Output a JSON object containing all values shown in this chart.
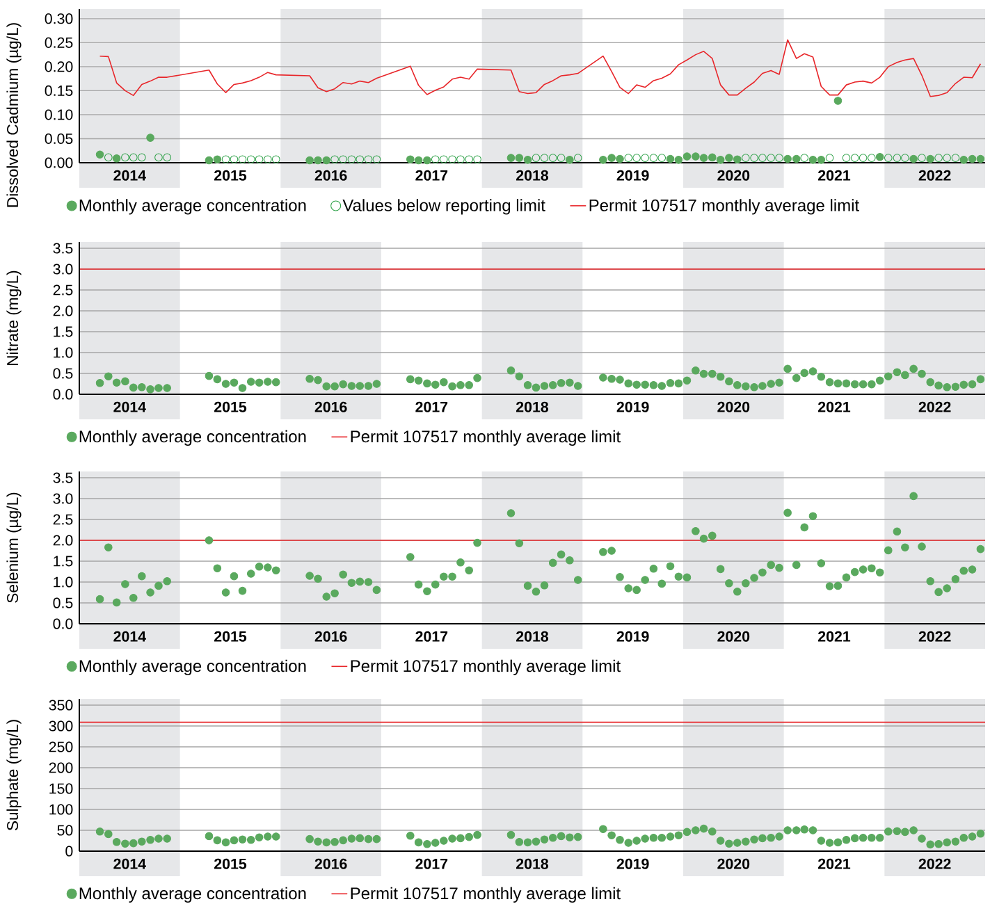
{
  "chart_data": [
    {
      "type": "scatter",
      "ylabel": "Dissolved Cadmium (µg/L)",
      "xlim": [
        "2014-01-01",
        "2023-01-01"
      ],
      "ylim": [
        0,
        0.32
      ],
      "x": [
        "2014-03-15",
        "2014-04-15",
        "2014-05-15",
        "2014-06-15",
        "2014-07-15",
        "2014-08-15",
        "2014-09-15",
        "2014-10-15",
        "2014-11-15",
        "2015-04-15",
        "2015-05-15",
        "2015-06-15",
        "2015-07-15",
        "2015-08-15",
        "2015-09-15",
        "2015-10-15",
        "2015-11-15",
        "2015-12-15",
        "2016-04-15",
        "2016-05-15",
        "2016-06-15",
        "2016-07-15",
        "2016-08-15",
        "2016-09-15",
        "2016-10-15",
        "2016-11-15",
        "2016-12-15",
        "2017-04-15",
        "2017-05-15",
        "2017-06-15",
        "2017-07-15",
        "2017-08-15",
        "2017-09-15",
        "2017-10-15",
        "2017-11-15",
        "2017-12-15",
        "2018-04-15",
        "2018-05-15",
        "2018-06-15",
        "2018-07-15",
        "2018-08-15",
        "2018-09-15",
        "2018-10-15",
        "2018-11-15",
        "2018-12-15",
        "2019-03-15",
        "2019-04-15",
        "2019-05-15",
        "2019-06-15",
        "2019-07-15",
        "2019-08-15",
        "2019-09-15",
        "2019-10-15",
        "2019-11-15",
        "2019-12-15",
        "2020-01-15",
        "2020-02-15",
        "2020-03-15",
        "2020-04-15",
        "2020-05-15",
        "2020-06-15",
        "2020-07-15",
        "2020-08-15",
        "2020-09-15",
        "2020-10-15",
        "2020-11-15",
        "2020-12-15",
        "2021-01-15",
        "2021-02-15",
        "2021-03-15",
        "2021-04-15",
        "2021-05-15",
        "2021-06-15",
        "2021-07-15",
        "2021-08-15",
        "2021-09-15",
        "2021-10-15",
        "2021-11-15",
        "2021-12-15",
        "2022-01-15",
        "2022-02-15",
        "2022-03-15",
        "2022-04-15",
        "2022-05-15",
        "2022-06-15",
        "2022-07-15",
        "2022-08-15",
        "2022-09-15",
        "2022-10-15",
        "2022-11-15",
        "2022-12-15"
      ],
      "xticks": [
        {
          "value": "2014-07-01",
          "label": "2014"
        },
        {
          "value": "2015-07-01",
          "label": "2015"
        },
        {
          "value": "2016-07-01",
          "label": "2016"
        },
        {
          "value": "2017-07-01",
          "label": "2017"
        },
        {
          "value": "2018-07-01",
          "label": "2018"
        },
        {
          "value": "2019-07-01",
          "label": "2019"
        },
        {
          "value": "2020-07-01",
          "label": "2020"
        },
        {
          "value": "2021-07-01",
          "label": "2021"
        },
        {
          "value": "2022-07-01",
          "label": "2022"
        }
      ],
      "yticks": [
        {
          "value": 0,
          "label": "0.00"
        },
        {
          "value": 0.05,
          "label": "0.05"
        },
        {
          "value": 0.1,
          "label": "0.10"
        },
        {
          "value": 0.15,
          "label": "0.15"
        },
        {
          "value": 0.2,
          "label": "0.20"
        },
        {
          "value": 0.25,
          "label": "0.25"
        },
        {
          "value": 0.3,
          "label": "0.30"
        }
      ],
      "grid": "y",
      "legend": "bottom",
      "bands": [
        {
          "axis": "x",
          "from": "2014-01-01",
          "to": "2015-01-01",
          "color": "#e6e7e9"
        },
        {
          "axis": "x",
          "from": "2016-01-01",
          "to": "2017-01-01",
          "color": "#e6e7e9"
        },
        {
          "axis": "x",
          "from": "2018-01-01",
          "to": "2019-01-01",
          "color": "#e6e7e9"
        },
        {
          "axis": "x",
          "from": "2020-01-01",
          "to": "2021-01-01",
          "color": "#e6e7e9"
        },
        {
          "axis": "x",
          "from": "2022-01-01",
          "to": "2023-01-01",
          "color": "#e6e7e9"
        }
      ],
      "series": [
        {
          "name": "Monthly average concentration",
          "color": "#5aa95e",
          "marker": "circle",
          "x": [
            "2014-03-15",
            "2014-05-15",
            "2014-09-15",
            "2015-04-15",
            "2015-05-15",
            "2016-04-15",
            "2016-05-15",
            "2016-06-15",
            "2017-04-15",
            "2017-05-15",
            "2017-06-15",
            "2018-04-15",
            "2018-05-15",
            "2018-06-15",
            "2018-11-15",
            "2019-03-15",
            "2019-04-15",
            "2019-05-15",
            "2019-11-15",
            "2019-12-15",
            "2020-01-15",
            "2020-02-15",
            "2020-03-15",
            "2020-04-15",
            "2020-05-15",
            "2020-06-15",
            "2020-07-15",
            "2021-01-15",
            "2021-02-15",
            "2021-04-15",
            "2021-05-15",
            "2021-07-15",
            "2021-12-15",
            "2022-04-15",
            "2022-06-15",
            "2022-10-15",
            "2022-11-15",
            "2022-12-15"
          ],
          "values": [
            0.017,
            0.009,
            0.052,
            0.005,
            0.007,
            0.005,
            0.005,
            0.005,
            0.007,
            0.005,
            0.005,
            0.01,
            0.01,
            0.006,
            0.006,
            0.006,
            0.01,
            0.008,
            0.008,
            0.006,
            0.013,
            0.013,
            0.01,
            0.011,
            0.006,
            0.01,
            0.007,
            0.008,
            0.008,
            0.006,
            0.006,
            0.129,
            0.012,
            0.008,
            0.008,
            0.006,
            0.008,
            0.008
          ]
        },
        {
          "name": "Values below reporting limit",
          "color": "#2ca046",
          "marker": "circle",
          "x": [
            "2014-04-15",
            "2014-06-15",
            "2014-07-15",
            "2014-08-15",
            "2014-10-15",
            "2014-11-15",
            "2015-06-15",
            "2015-07-15",
            "2015-08-15",
            "2015-09-15",
            "2015-10-15",
            "2015-11-15",
            "2015-12-15",
            "2016-07-15",
            "2016-08-15",
            "2016-09-15",
            "2016-10-15",
            "2016-11-15",
            "2016-12-15",
            "2017-07-15",
            "2017-08-15",
            "2017-09-15",
            "2017-10-15",
            "2017-11-15",
            "2017-12-15",
            "2018-07-15",
            "2018-08-15",
            "2018-09-15",
            "2018-10-15",
            "2018-12-15",
            "2019-06-15",
            "2019-07-15",
            "2019-08-15",
            "2019-09-15",
            "2019-10-15",
            "2020-08-15",
            "2020-09-15",
            "2020-10-15",
            "2020-11-15",
            "2020-12-15",
            "2021-03-15",
            "2021-06-15",
            "2021-08-15",
            "2021-09-15",
            "2021-10-15",
            "2021-11-15",
            "2022-01-15",
            "2022-02-15",
            "2022-03-15",
            "2022-05-15",
            "2022-07-15",
            "2022-08-15",
            "2022-09-15"
          ],
          "values": [
            0.011,
            0.011,
            0.011,
            0.011,
            0.011,
            0.011,
            0.007,
            0.007,
            0.007,
            0.007,
            0.007,
            0.007,
            0.007,
            0.007,
            0.007,
            0.007,
            0.007,
            0.007,
            0.007,
            0.007,
            0.007,
            0.007,
            0.007,
            0.007,
            0.007,
            0.01,
            0.01,
            0.01,
            0.01,
            0.01,
            0.01,
            0.01,
            0.01,
            0.01,
            0.01,
            0.01,
            0.01,
            0.01,
            0.01,
            0.01,
            0.01,
            0.01,
            0.01,
            0.01,
            0.01,
            0.01,
            0.01,
            0.01,
            0.01,
            0.01,
            0.01,
            0.01,
            0.01
          ]
        },
        {
          "type": "line",
          "name": "Permit 107517 monthly average limit",
          "color": "#e8262a",
          "values": [
            0.222,
            0.221,
            0.166,
            0.15,
            0.14,
            0.163,
            0.17,
            0.178,
            0.178,
            0.193,
            0.164,
            0.146,
            0.163,
            0.166,
            0.171,
            0.178,
            0.188,
            0.183,
            0.181,
            0.156,
            0.148,
            0.154,
            0.167,
            0.164,
            0.17,
            0.167,
            0.176,
            0.201,
            0.161,
            0.142,
            0.151,
            0.158,
            0.174,
            0.178,
            0.174,
            0.195,
            0.193,
            0.148,
            0.144,
            0.146,
            0.163,
            0.171,
            0.181,
            0.183,
            0.186,
            0.222,
            0.19,
            0.157,
            0.144,
            0.162,
            0.157,
            0.171,
            0.176,
            0.185,
            0.204,
            0.214,
            0.225,
            0.232,
            0.217,
            0.162,
            0.141,
            0.141,
            0.155,
            0.168,
            0.186,
            0.192,
            0.184,
            0.256,
            0.217,
            0.227,
            0.22,
            0.159,
            0.141,
            0.141,
            0.162,
            0.168,
            0.17,
            0.166,
            0.178,
            0.2,
            0.209,
            0.214,
            0.217,
            0.182,
            0.138,
            0.14,
            0.146,
            0.165,
            0.178,
            0.177,
            0.206
          ]
        }
      ]
    },
    {
      "type": "scatter",
      "ylabel": "Nitrate (mg/L)",
      "xlim": [
        "2014-01-01",
        "2023-01-01"
      ],
      "ylim": [
        0,
        3.65
      ],
      "x": [
        "2014-03-15",
        "2014-04-15",
        "2014-05-15",
        "2014-06-15",
        "2014-07-15",
        "2014-08-15",
        "2014-09-15",
        "2014-10-15",
        "2014-11-15",
        "2015-04-15",
        "2015-05-15",
        "2015-06-15",
        "2015-07-15",
        "2015-08-15",
        "2015-09-15",
        "2015-10-15",
        "2015-11-15",
        "2015-12-15",
        "2016-04-15",
        "2016-05-15",
        "2016-06-15",
        "2016-07-15",
        "2016-08-15",
        "2016-09-15",
        "2016-10-15",
        "2016-11-15",
        "2016-12-15",
        "2017-04-15",
        "2017-05-15",
        "2017-06-15",
        "2017-07-15",
        "2017-08-15",
        "2017-09-15",
        "2017-10-15",
        "2017-11-15",
        "2017-12-15",
        "2018-04-15",
        "2018-05-15",
        "2018-06-15",
        "2018-07-15",
        "2018-08-15",
        "2018-09-15",
        "2018-10-15",
        "2018-11-15",
        "2018-12-15",
        "2019-03-15",
        "2019-04-15",
        "2019-05-15",
        "2019-06-15",
        "2019-07-15",
        "2019-08-15",
        "2019-09-15",
        "2019-10-15",
        "2019-11-15",
        "2019-12-15",
        "2020-01-15",
        "2020-02-15",
        "2020-03-15",
        "2020-04-15",
        "2020-05-15",
        "2020-06-15",
        "2020-07-15",
        "2020-08-15",
        "2020-09-15",
        "2020-10-15",
        "2020-11-15",
        "2020-12-15",
        "2021-01-15",
        "2021-02-15",
        "2021-03-15",
        "2021-04-15",
        "2021-05-15",
        "2021-06-15",
        "2021-07-15",
        "2021-08-15",
        "2021-09-15",
        "2021-10-15",
        "2021-11-15",
        "2021-12-15",
        "2022-01-15",
        "2022-02-15",
        "2022-03-15",
        "2022-04-15",
        "2022-05-15",
        "2022-06-15",
        "2022-07-15",
        "2022-08-15",
        "2022-09-15",
        "2022-10-15",
        "2022-11-15",
        "2022-12-15"
      ],
      "xticks": [
        {
          "value": "2014-07-01",
          "label": "2014"
        },
        {
          "value": "2015-07-01",
          "label": "2015"
        },
        {
          "value": "2016-07-01",
          "label": "2016"
        },
        {
          "value": "2017-07-01",
          "label": "2017"
        },
        {
          "value": "2018-07-01",
          "label": "2018"
        },
        {
          "value": "2019-07-01",
          "label": "2019"
        },
        {
          "value": "2020-07-01",
          "label": "2020"
        },
        {
          "value": "2021-07-01",
          "label": "2021"
        },
        {
          "value": "2022-07-01",
          "label": "2022"
        }
      ],
      "yticks": [
        {
          "value": 0,
          "label": "0.0"
        },
        0.5,
        {
          "value": 1,
          "label": "1.0"
        },
        1.5,
        {
          "value": 2,
          "label": "2.0"
        },
        2.5,
        {
          "value": 3,
          "label": "3.0"
        },
        3.5
      ],
      "grid": "y",
      "legend": "bottom",
      "marker": "circle",
      "bands": [
        {
          "axis": "x",
          "from": "2014-01-01",
          "to": "2015-01-01",
          "color": "#e6e7e9"
        },
        {
          "axis": "x",
          "from": "2016-01-01",
          "to": "2017-01-01",
          "color": "#e6e7e9"
        },
        {
          "axis": "x",
          "from": "2018-01-01",
          "to": "2019-01-01",
          "color": "#e6e7e9"
        },
        {
          "axis": "x",
          "from": "2020-01-01",
          "to": "2021-01-01",
          "color": "#e6e7e9"
        },
        {
          "axis": "x",
          "from": "2022-01-01",
          "to": "2023-01-01",
          "color": "#e6e7e9"
        }
      ],
      "ref_lines": [
        {
          "axis": "y",
          "value": 3.0,
          "label": "Permit 107517 monthly average limit",
          "color": "#e8262a"
        }
      ],
      "series": [
        {
          "name": "Monthly average concentration",
          "color": "#5aa95e",
          "values": [
            0.27,
            0.43,
            0.28,
            0.31,
            0.16,
            0.17,
            0.12,
            0.15,
            0.15,
            0.44,
            0.36,
            0.25,
            0.28,
            0.15,
            0.3,
            0.28,
            0.3,
            0.29,
            0.37,
            0.34,
            0.19,
            0.19,
            0.24,
            0.2,
            0.2,
            0.2,
            0.25,
            0.36,
            0.33,
            0.26,
            0.23,
            0.29,
            0.19,
            0.22,
            0.22,
            0.39,
            0.57,
            0.43,
            0.22,
            0.16,
            0.2,
            0.22,
            0.27,
            0.28,
            0.2,
            0.4,
            0.37,
            0.35,
            0.26,
            0.23,
            0.23,
            0.22,
            0.2,
            0.27,
            0.26,
            0.33,
            0.57,
            0.49,
            0.49,
            0.42,
            0.31,
            0.22,
            0.19,
            0.17,
            0.2,
            0.25,
            0.28,
            0.61,
            0.39,
            0.51,
            0.55,
            0.42,
            0.29,
            0.26,
            0.26,
            0.24,
            0.24,
            0.24,
            0.33,
            0.43,
            0.53,
            0.46,
            0.61,
            0.49,
            0.29,
            0.21,
            0.17,
            0.18,
            0.23,
            0.24,
            0.36
          ]
        }
      ]
    },
    {
      "type": "scatter",
      "ylabel": "Selenium (µg/L)",
      "xlim": [
        "2014-01-01",
        "2023-01-01"
      ],
      "ylim": [
        0,
        3.65
      ],
      "x": [
        "2014-03-15",
        "2014-04-15",
        "2014-05-15",
        "2014-06-15",
        "2014-07-15",
        "2014-08-15",
        "2014-09-15",
        "2014-10-15",
        "2014-11-15",
        "2015-04-15",
        "2015-05-15",
        "2015-06-15",
        "2015-07-15",
        "2015-08-15",
        "2015-09-15",
        "2015-10-15",
        "2015-11-15",
        "2015-12-15",
        "2016-04-15",
        "2016-05-15",
        "2016-06-15",
        "2016-07-15",
        "2016-08-15",
        "2016-09-15",
        "2016-10-15",
        "2016-11-15",
        "2016-12-15",
        "2017-04-15",
        "2017-05-15",
        "2017-06-15",
        "2017-07-15",
        "2017-08-15",
        "2017-09-15",
        "2017-10-15",
        "2017-11-15",
        "2017-12-15",
        "2018-04-15",
        "2018-05-15",
        "2018-06-15",
        "2018-07-15",
        "2018-08-15",
        "2018-09-15",
        "2018-10-15",
        "2018-11-15",
        "2018-12-15",
        "2019-03-15",
        "2019-04-15",
        "2019-05-15",
        "2019-06-15",
        "2019-07-15",
        "2019-08-15",
        "2019-09-15",
        "2019-10-15",
        "2019-11-15",
        "2019-12-15",
        "2020-01-15",
        "2020-02-15",
        "2020-03-15",
        "2020-04-15",
        "2020-05-15",
        "2020-06-15",
        "2020-07-15",
        "2020-08-15",
        "2020-09-15",
        "2020-10-15",
        "2020-11-15",
        "2020-12-15",
        "2021-01-15",
        "2021-02-15",
        "2021-03-15",
        "2021-04-15",
        "2021-05-15",
        "2021-06-15",
        "2021-07-15",
        "2021-08-15",
        "2021-09-15",
        "2021-10-15",
        "2021-11-15",
        "2021-12-15",
        "2022-01-15",
        "2022-02-15",
        "2022-03-15",
        "2022-04-15",
        "2022-05-15",
        "2022-06-15",
        "2022-07-15",
        "2022-08-15",
        "2022-09-15",
        "2022-10-15",
        "2022-11-15",
        "2022-12-15"
      ],
      "xticks": [
        {
          "value": "2014-07-01",
          "label": "2014"
        },
        {
          "value": "2015-07-01",
          "label": "2015"
        },
        {
          "value": "2016-07-01",
          "label": "2016"
        },
        {
          "value": "2017-07-01",
          "label": "2017"
        },
        {
          "value": "2018-07-01",
          "label": "2018"
        },
        {
          "value": "2019-07-01",
          "label": "2019"
        },
        {
          "value": "2020-07-01",
          "label": "2020"
        },
        {
          "value": "2021-07-01",
          "label": "2021"
        },
        {
          "value": "2022-07-01",
          "label": "2022"
        }
      ],
      "yticks": [
        {
          "value": 0,
          "label": "0.0"
        },
        0.5,
        {
          "value": 1,
          "label": "1.0"
        },
        1.5,
        {
          "value": 2,
          "label": "2.0"
        },
        2.5,
        {
          "value": 3,
          "label": "3.0"
        },
        3.5
      ],
      "grid": "y",
      "legend": "bottom",
      "marker": "circle",
      "bands": [
        {
          "axis": "x",
          "from": "2014-01-01",
          "to": "2015-01-01",
          "color": "#e6e7e9"
        },
        {
          "axis": "x",
          "from": "2016-01-01",
          "to": "2017-01-01",
          "color": "#e6e7e9"
        },
        {
          "axis": "x",
          "from": "2018-01-01",
          "to": "2019-01-01",
          "color": "#e6e7e9"
        },
        {
          "axis": "x",
          "from": "2020-01-01",
          "to": "2021-01-01",
          "color": "#e6e7e9"
        },
        {
          "axis": "x",
          "from": "2022-01-01",
          "to": "2023-01-01",
          "color": "#e6e7e9"
        }
      ],
      "ref_lines": [
        {
          "axis": "y",
          "value": 2.0,
          "label": "Permit 107517 monthly average limit",
          "color": "#e8262a"
        }
      ],
      "series": [
        {
          "name": "Monthly average concentration",
          "color": "#5aa95e",
          "values": [
            0.59,
            1.83,
            0.51,
            0.95,
            0.62,
            1.14,
            0.75,
            0.91,
            1.02,
            2.0,
            1.33,
            0.75,
            1.14,
            0.79,
            1.2,
            1.37,
            1.35,
            1.28,
            1.15,
            1.08,
            0.65,
            0.73,
            1.18,
            0.98,
            1.01,
            1.0,
            0.81,
            1.6,
            0.94,
            0.78,
            0.94,
            1.13,
            1.13,
            1.47,
            1.28,
            1.94,
            2.65,
            1.93,
            0.91,
            0.77,
            0.92,
            1.46,
            1.66,
            1.52,
            1.05,
            1.72,
            1.75,
            1.12,
            0.85,
            0.81,
            1.05,
            1.32,
            0.96,
            1.38,
            1.13,
            1.11,
            2.22,
            2.04,
            2.11,
            1.31,
            0.97,
            0.77,
            0.97,
            1.1,
            1.23,
            1.41,
            1.34,
            2.66,
            1.41,
            2.31,
            2.58,
            1.45,
            0.9,
            0.91,
            1.11,
            1.24,
            1.3,
            1.33,
            1.23,
            1.76,
            2.21,
            1.83,
            3.06,
            1.85,
            1.02,
            0.76,
            0.85,
            1.07,
            1.27,
            1.3,
            1.79
          ]
        }
      ]
    },
    {
      "type": "scatter",
      "ylabel": "Sulphate (mg/L)",
      "xlim": [
        "2014-01-01",
        "2023-01-01"
      ],
      "ylim": [
        0,
        365
      ],
      "x": [
        "2014-03-15",
        "2014-04-15",
        "2014-05-15",
        "2014-06-15",
        "2014-07-15",
        "2014-08-15",
        "2014-09-15",
        "2014-10-15",
        "2014-11-15",
        "2015-04-15",
        "2015-05-15",
        "2015-06-15",
        "2015-07-15",
        "2015-08-15",
        "2015-09-15",
        "2015-10-15",
        "2015-11-15",
        "2015-12-15",
        "2016-04-15",
        "2016-05-15",
        "2016-06-15",
        "2016-07-15",
        "2016-08-15",
        "2016-09-15",
        "2016-10-15",
        "2016-11-15",
        "2016-12-15",
        "2017-04-15",
        "2017-05-15",
        "2017-06-15",
        "2017-07-15",
        "2017-08-15",
        "2017-09-15",
        "2017-10-15",
        "2017-11-15",
        "2017-12-15",
        "2018-04-15",
        "2018-05-15",
        "2018-06-15",
        "2018-07-15",
        "2018-08-15",
        "2018-09-15",
        "2018-10-15",
        "2018-11-15",
        "2018-12-15",
        "2019-03-15",
        "2019-04-15",
        "2019-05-15",
        "2019-06-15",
        "2019-07-15",
        "2019-08-15",
        "2019-09-15",
        "2019-10-15",
        "2019-11-15",
        "2019-12-15",
        "2020-01-15",
        "2020-02-15",
        "2020-03-15",
        "2020-04-15",
        "2020-05-15",
        "2020-06-15",
        "2020-07-15",
        "2020-08-15",
        "2020-09-15",
        "2020-10-15",
        "2020-11-15",
        "2020-12-15",
        "2021-01-15",
        "2021-02-15",
        "2021-03-15",
        "2021-04-15",
        "2021-05-15",
        "2021-06-15",
        "2021-07-15",
        "2021-08-15",
        "2021-09-15",
        "2021-10-15",
        "2021-11-15",
        "2021-12-15",
        "2022-01-15",
        "2022-02-15",
        "2022-03-15",
        "2022-04-15",
        "2022-05-15",
        "2022-06-15",
        "2022-07-15",
        "2022-08-15",
        "2022-09-15",
        "2022-10-15",
        "2022-11-15",
        "2022-12-15"
      ],
      "xticks": [
        {
          "value": "2014-07-01",
          "label": "2014"
        },
        {
          "value": "2015-07-01",
          "label": "2015"
        },
        {
          "value": "2016-07-01",
          "label": "2016"
        },
        {
          "value": "2017-07-01",
          "label": "2017"
        },
        {
          "value": "2018-07-01",
          "label": "2018"
        },
        {
          "value": "2019-07-01",
          "label": "2019"
        },
        {
          "value": "2020-07-01",
          "label": "2020"
        },
        {
          "value": "2021-07-01",
          "label": "2021"
        },
        {
          "value": "2022-07-01",
          "label": "2022"
        }
      ],
      "yticks": [
        0,
        50,
        100,
        150,
        200,
        250,
        300,
        350
      ],
      "grid": "y",
      "legend": "bottom",
      "marker": "circle",
      "bands": [
        {
          "axis": "x",
          "from": "2014-01-01",
          "to": "2015-01-01",
          "color": "#e6e7e9"
        },
        {
          "axis": "x",
          "from": "2016-01-01",
          "to": "2017-01-01",
          "color": "#e6e7e9"
        },
        {
          "axis": "x",
          "from": "2018-01-01",
          "to": "2019-01-01",
          "color": "#e6e7e9"
        },
        {
          "axis": "x",
          "from": "2020-01-01",
          "to": "2021-01-01",
          "color": "#e6e7e9"
        },
        {
          "axis": "x",
          "from": "2022-01-01",
          "to": "2023-01-01",
          "color": "#e6e7e9"
        }
      ],
      "ref_lines": [
        {
          "axis": "y",
          "value": 309,
          "label": "Permit 107517 monthly average limit",
          "color": "#e8262a"
        }
      ],
      "series": [
        {
          "name": "Monthly average concentration",
          "color": "#5aa95e",
          "values": [
            47,
            41,
            22,
            18,
            19,
            23,
            27,
            30,
            30,
            36,
            26,
            21,
            26,
            28,
            27,
            33,
            35,
            35,
            29,
            23,
            21,
            22,
            26,
            30,
            31,
            29,
            29,
            37,
            21,
            17,
            20,
            25,
            30,
            31,
            34,
            39,
            39,
            22,
            21,
            23,
            28,
            32,
            36,
            33,
            34,
            53,
            38,
            27,
            20,
            25,
            30,
            32,
            32,
            35,
            38,
            46,
            50,
            54,
            47,
            25,
            18,
            20,
            23,
            28,
            31,
            32,
            35,
            50,
            50,
            52,
            50,
            25,
            20,
            21,
            27,
            31,
            32,
            32,
            32,
            47,
            48,
            46,
            50,
            30,
            16,
            17,
            21,
            23,
            32,
            35,
            42
          ]
        }
      ]
    }
  ]
}
